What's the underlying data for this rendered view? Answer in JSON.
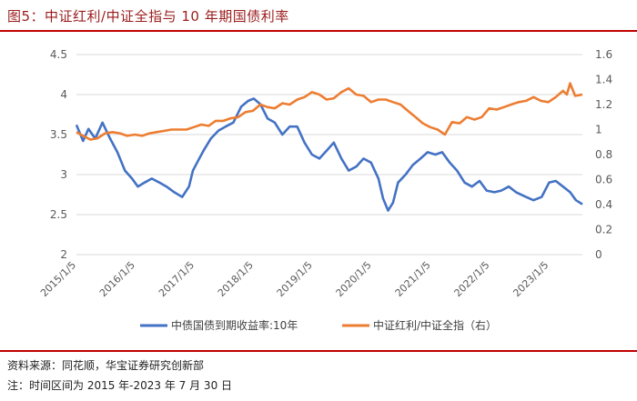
{
  "figure": {
    "title": "图5：中证红利/中证全指与 10 年期国债利率",
    "source": "资料来源：同花顺，华宝证券研究创新部",
    "note": "注：时间区间为 2015 年-2023 年 7 月 30 日"
  },
  "colors": {
    "blue": "#4472C4",
    "orange": "#ED7D31",
    "rule": "#C00000",
    "title": "#9B1C1C"
  },
  "chart_data": {
    "type": "line",
    "x_ticks": [
      "2015/1/5",
      "2016/1/5",
      "2017/1/5",
      "2018/1/5",
      "2019/1/5",
      "2020/1/5",
      "2021/1/5",
      "2022/1/5",
      "2023/1/5"
    ],
    "y_left": {
      "min": 2,
      "max": 4.5,
      "ticks": [
        "2",
        "2.5",
        "3",
        "3.5",
        "4",
        "4.5"
      ]
    },
    "y_right": {
      "min": 0,
      "max": 1.6,
      "ticks": [
        "0",
        "0.2",
        "0.4",
        "0.6",
        "0.8",
        "1",
        "1.2",
        "1.4",
        "1.6"
      ]
    },
    "grid": "horizontal",
    "legend_position": "bottom",
    "series": [
      {
        "name": "中债国债到期收益率:10年",
        "axis": "left",
        "x": [
          "2015/1/5",
          "2015/2/15",
          "2015/3/20",
          "2015/5/1",
          "2015/6/15",
          "2015/8/1",
          "2015/9/15",
          "2015/11/1",
          "2015/12/15",
          "2016/1/20",
          "2016/3/1",
          "2016/4/15",
          "2016/6/1",
          "2016/7/15",
          "2016/9/1",
          "2016/10/20",
          "2016/12/1",
          "2016/12/25",
          "2017/1/20",
          "2017/3/1",
          "2017/4/15",
          "2017/6/1",
          "2017/7/15",
          "2017/9/1",
          "2017/10/20",
          "2017/12/1",
          "2018/1/5",
          "2018/2/15",
          "2018/4/1",
          "2018/5/15",
          "2018/7/1",
          "2018/8/15",
          "2018/10/1",
          "2018/11/15",
          "2018/12/31",
          "2019/2/15",
          "2019/4/1",
          "2019/5/15",
          "2019/7/1",
          "2019/8/15",
          "2019/10/1",
          "2019/11/15",
          "2019/12/31",
          "2020/2/15",
          "2020/3/15",
          "2020/4/15",
          "2020/5/15",
          "2020/6/15",
          "2020/8/1",
          "2020/9/15",
          "2020/11/1",
          "2020/12/15",
          "2021/2/1",
          "2021/3/15",
          "2021/5/1",
          "2021/6/15",
          "2021/8/1",
          "2021/9/15",
          "2021/11/1",
          "2021/12/15",
          "2022/2/1",
          "2022/3/15",
          "2022/5/1",
          "2022/6/15",
          "2022/8/15",
          "2022/10/1",
          "2022/11/20",
          "2023/1/5",
          "2023/2/15",
          "2023/4/1",
          "2023/5/15",
          "2023/6/20",
          "2023/7/30"
        ],
        "values": [
          3.62,
          3.42,
          3.57,
          3.45,
          3.65,
          3.45,
          3.28,
          3.05,
          2.95,
          2.85,
          2.9,
          2.95,
          2.9,
          2.85,
          2.78,
          2.72,
          2.85,
          3.05,
          3.15,
          3.3,
          3.45,
          3.55,
          3.6,
          3.65,
          3.85,
          3.92,
          3.95,
          3.88,
          3.7,
          3.65,
          3.5,
          3.6,
          3.6,
          3.4,
          3.25,
          3.2,
          3.3,
          3.4,
          3.2,
          3.05,
          3.1,
          3.2,
          3.15,
          2.95,
          2.7,
          2.55,
          2.65,
          2.9,
          3.0,
          3.12,
          3.2,
          3.28,
          3.25,
          3.28,
          3.15,
          3.05,
          2.9,
          2.85,
          2.92,
          2.8,
          2.78,
          2.8,
          2.85,
          2.78,
          2.72,
          2.68,
          2.72,
          2.9,
          2.92,
          2.85,
          2.78,
          2.68,
          2.63
        ]
      },
      {
        "name": "中证红利/中证全指（右）",
        "axis": "right",
        "x": [
          "2015/1/5",
          "2015/2/15",
          "2015/4/1",
          "2015/5/15",
          "2015/7/1",
          "2015/8/15",
          "2015/10/1",
          "2015/11/15",
          "2015/12/31",
          "2016/2/15",
          "2016/4/1",
          "2016/5/15",
          "2016/7/1",
          "2016/8/15",
          "2016/10/1",
          "2016/11/15",
          "2016/12/31",
          "2017/2/15",
          "2017/4/1",
          "2017/5/15",
          "2017/7/1",
          "2017/8/15",
          "2017/10/1",
          "2017/11/15",
          "2017/12/31",
          "2018/2/15",
          "2018/4/1",
          "2018/5/15",
          "2018/7/1",
          "2018/8/15",
          "2018/10/1",
          "2018/11/15",
          "2018/12/31",
          "2019/2/15",
          "2019/4/1",
          "2019/5/15",
          "2019/7/1",
          "2019/8/15",
          "2019/10/1",
          "2019/11/15",
          "2019/12/31",
          "2020/2/15",
          "2020/4/1",
          "2020/5/15",
          "2020/7/1",
          "2020/8/15",
          "2020/10/1",
          "2020/11/15",
          "2020/12/31",
          "2021/2/15",
          "2021/4/1",
          "2021/5/15",
          "2021/7/1",
          "2021/8/15",
          "2021/10/1",
          "2021/11/15",
          "2021/12/31",
          "2022/2/15",
          "2022/4/1",
          "2022/5/15",
          "2022/7/1",
          "2022/8/15",
          "2022/10/1",
          "2022/11/15",
          "2022/12/31",
          "2023/2/15",
          "2023/4/1",
          "2023/4/25",
          "2023/5/15",
          "2023/6/15",
          "2023/7/30"
        ],
        "values": [
          0.98,
          0.95,
          0.92,
          0.93,
          0.97,
          0.98,
          0.97,
          0.95,
          0.96,
          0.95,
          0.97,
          0.98,
          0.99,
          1.0,
          1.0,
          1.0,
          1.02,
          1.04,
          1.03,
          1.07,
          1.07,
          1.09,
          1.1,
          1.14,
          1.15,
          1.2,
          1.18,
          1.17,
          1.21,
          1.2,
          1.24,
          1.26,
          1.3,
          1.28,
          1.24,
          1.25,
          1.3,
          1.33,
          1.28,
          1.27,
          1.22,
          1.24,
          1.24,
          1.22,
          1.2,
          1.15,
          1.1,
          1.05,
          1.02,
          1.0,
          0.96,
          1.06,
          1.05,
          1.1,
          1.08,
          1.1,
          1.17,
          1.16,
          1.18,
          1.2,
          1.22,
          1.23,
          1.26,
          1.23,
          1.22,
          1.26,
          1.31,
          1.28,
          1.37,
          1.27,
          1.28
        ]
      }
    ]
  }
}
